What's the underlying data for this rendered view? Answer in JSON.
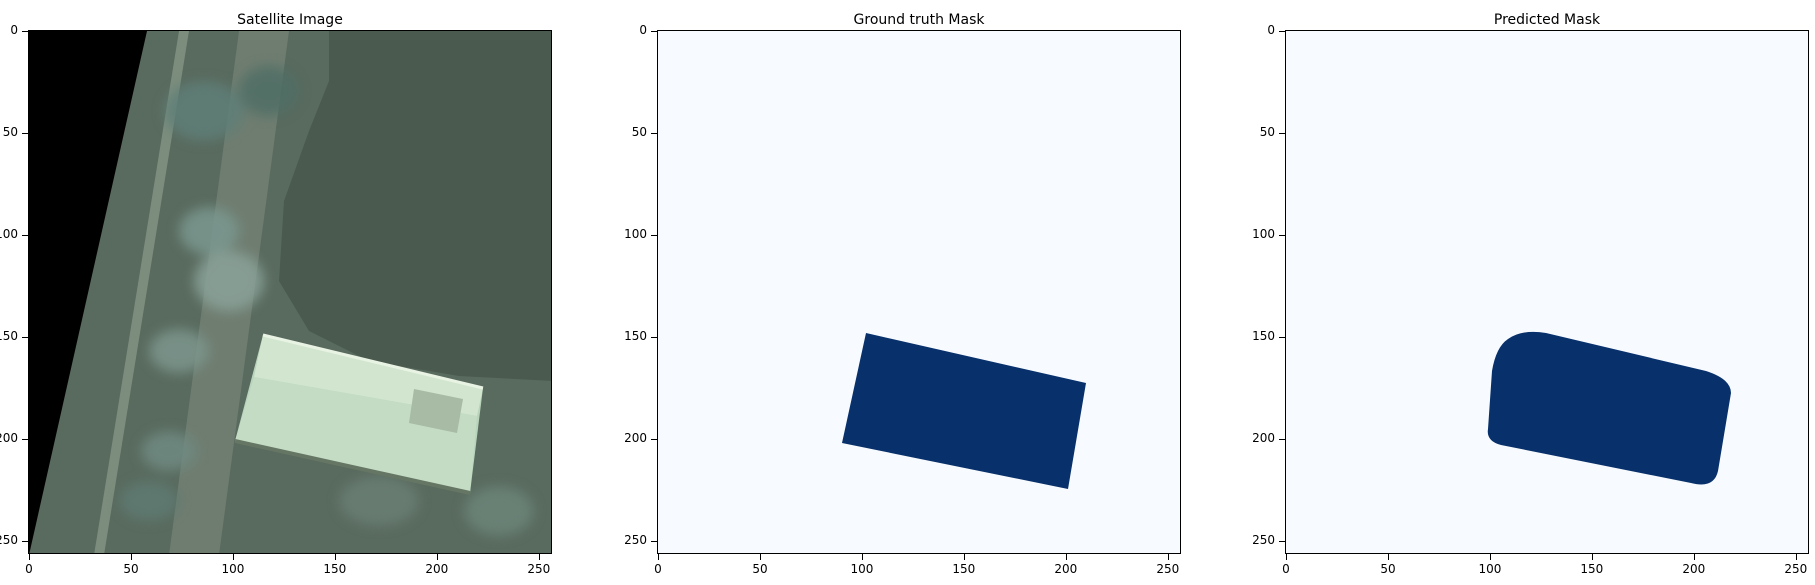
{
  "panels": [
    {
      "id": "satellite",
      "title": "Satellite Image",
      "kind": "satellite"
    },
    {
      "id": "ground-truth",
      "title": "Ground truth Mask",
      "kind": "mask"
    },
    {
      "id": "predicted",
      "title": "Predicted Mask",
      "kind": "mask"
    }
  ],
  "axis": {
    "x_ticks": [
      "0",
      "50",
      "100",
      "150",
      "200",
      "250"
    ],
    "y_ticks": [
      "0",
      "50",
      "100",
      "150",
      "200",
      "250"
    ],
    "x_tick_values": [
      0,
      50,
      100,
      150,
      200,
      250
    ],
    "y_tick_values": [
      0,
      50,
      100,
      150,
      200,
      250
    ],
    "range": [
      0,
      256
    ]
  },
  "colors": {
    "mask_background": "#f7fbff",
    "mask_foreground": "#08306b",
    "frame": "#000000"
  }
}
